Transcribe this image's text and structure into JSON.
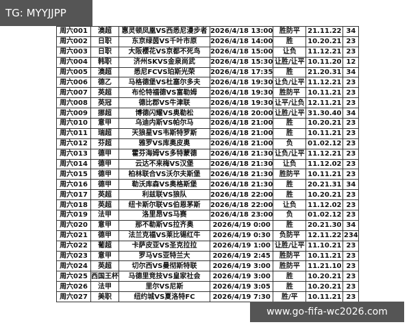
{
  "overlay_top": "TG: MYYJJPP",
  "overlay_bottom": "www.go-fifa-wc2026.com",
  "table": {
    "rows": [
      [
        "周六001",
        "澳超",
        "惠灵顿凤凰VS西悉尼漫步者",
        "2026/4/18 13:00",
        "胜防平",
        "21.11.22",
        "34"
      ],
      [
        "周六002",
        "日职",
        "东京绿茵VS千叶市原",
        "2026/4/18 14:00",
        "胜",
        "10.20.21",
        "23"
      ],
      [
        "周六003",
        "日职",
        "大阪樱花VS京都不死鸟",
        "2026/4/18 15:00",
        "让负",
        "11.12.21",
        "23"
      ],
      [
        "周六004",
        "韩职",
        "济州SKVS金泉尚武",
        "2026/4/18 15:30",
        "让胜/让平",
        "10.11.20",
        "12"
      ],
      [
        "周六005",
        "澳超",
        "悉尼FCVS珀斯光荣",
        "2026/4/18 17:35",
        "胜",
        "21.20.31",
        "34"
      ],
      [
        "周六006",
        "德乙",
        "马格德堡VS杜塞尔多夫",
        "2026/4/18 19:30",
        "让负/让平",
        "11.12.21",
        "23"
      ],
      [
        "周六007",
        "英超",
        "布伦特福德VS富勒姆",
        "2026/4/18 19:30",
        "胜防平",
        "10.11.21",
        "23"
      ],
      [
        "周六008",
        "英冠",
        "德比郡VS牛津联",
        "2026/4/18 19:30",
        "让平/让负",
        "12.11.21",
        "23"
      ],
      [
        "周六009",
        "挪超",
        "博德闪耀VS奥勒松",
        "2026/4/18 20:00",
        "让胜/让平",
        "31.30.40",
        "34"
      ],
      [
        "周六010",
        "意甲",
        "乌迪内斯VS帕尔马",
        "2026/4/18 21:00",
        "胜",
        "10.20.21",
        "23"
      ],
      [
        "周六011",
        "瑞超",
        "天狼星VS韦斯特罗斯",
        "2026/4/18 21:00",
        "胜",
        "10.11.21",
        "23"
      ],
      [
        "周六012",
        "芬超",
        "雅罗VS库奥皮奥",
        "2026/4/18 21:00",
        "负",
        "01.02.12",
        "23"
      ],
      [
        "周六013",
        "德甲",
        "霍芬海姆VS多特蒙德",
        "2026/4/18 21:30",
        "让负/让平",
        "11.12.21",
        "23"
      ],
      [
        "周六014",
        "德甲",
        "云达不来梅VS汉堡",
        "2026/4/18 21:30",
        "让负",
        "11.12.02",
        "23"
      ],
      [
        "周六015",
        "德甲",
        "柏林联合VS沃尔夫斯堡",
        "2026/4/18 21:30",
        "胜防平",
        "10.11.21",
        "23"
      ],
      [
        "周六016",
        "德甲",
        "勒沃库森VS奥格斯堡",
        "2026/4/18 21:30",
        "胜",
        "20.21.31",
        "34"
      ],
      [
        "周六017",
        "英超",
        "利兹联VS狼队",
        "2026/4/18 22:00",
        "胜",
        "10.20.21",
        "23"
      ],
      [
        "周六018",
        "英超",
        "纽卡斯尔联VS伯恩茅斯",
        "2026/4/18 22:00",
        "让负",
        "11.12.02",
        "23"
      ],
      [
        "周六019",
        "法甲",
        "洛里昂VS马赛",
        "2026/4/18 23:00",
        "负",
        "01.02.12",
        "23"
      ],
      [
        "周六020",
        "意甲",
        "那不勒斯VS拉齐奥",
        "2026/4/19 0:00",
        "胜",
        "20.21.30",
        "34"
      ],
      [
        "周六021",
        "德甲",
        "法兰克福VS莱比锡红牛",
        "2026/4/19 0:30",
        "负防平",
        "12.11.22",
        "234"
      ],
      [
        "周六022",
        "葡超",
        "卡萨皮亚VS圣克拉拉",
        "2026/4/19 1:00",
        "让胜/让平",
        "11.10.21",
        "23"
      ],
      [
        "周六023",
        "意甲",
        "罗马VS亚特兰大",
        "2026/4/19 2:45",
        "胜防平",
        "10.11.21",
        "23"
      ],
      [
        "周六024",
        "英超",
        "切尔西VS曼彻斯特联",
        "2026/4/19 3:00",
        "胜防平",
        "11.21.10",
        "23"
      ],
      [
        "周六025",
        "西国王杯",
        "马德里竞技VS皇家社会",
        "2026/4/19 3:00",
        "胜",
        "10.20.21",
        "23"
      ],
      [
        "周六026",
        "法甲",
        "里尔VS尼斯",
        "2026/4/19 3:05",
        "胜",
        "10.20.21",
        "23"
      ],
      [
        "周六027",
        "美职",
        "纽约城VS夏洛特FC",
        "2026/4/19 7:30",
        "胜/平",
        "10.11.21",
        "23"
      ]
    ]
  }
}
